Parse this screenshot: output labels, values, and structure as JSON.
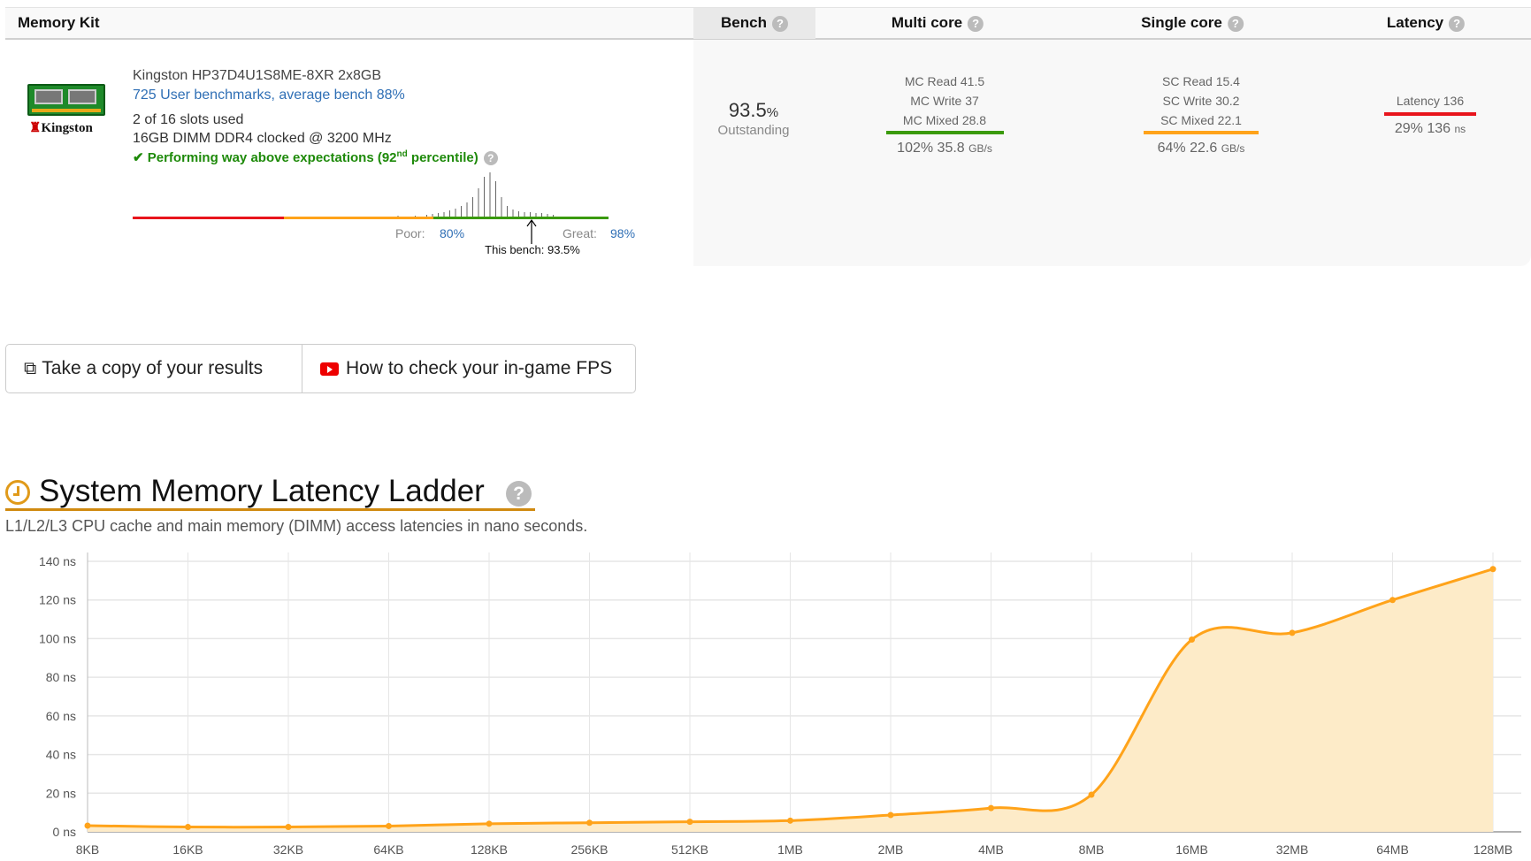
{
  "table": {
    "headers": {
      "kit": "Memory Kit",
      "bench": "Bench",
      "multi": "Multi core",
      "single": "Single core",
      "latency": "Latency"
    },
    "help_glyph": "?",
    "kit": {
      "name": "Kingston HP37D4U1S8ME-8XR 2x8GB",
      "benchmarks_link": "725 User benchmarks, average bench 88%",
      "slots": "2 of 16 slots used",
      "spec": "16GB DIMM DDR4 clocked @ 3200 MHz",
      "performance_prefix": "Performing way above expectations (92",
      "performance_sup": "nd",
      "performance_suffix": " percentile)",
      "logo_text": "Kingston",
      "distribution": {
        "poor_label": "Poor:",
        "poor_value": "80%",
        "great_label": "Great:",
        "great_value": "98%",
        "this_bench": "This bench: 93.5%"
      }
    },
    "bench": {
      "value": "93.5",
      "unit": "%",
      "rating": "Outstanding"
    },
    "multi": {
      "read": "MC Read 41.5",
      "write": "MC Write 37",
      "mixed": "MC Mixed 28.8",
      "summary": "102% 35.8",
      "unit": "GB/s",
      "bar_color": "#3a9a0a"
    },
    "single": {
      "read": "SC Read 15.4",
      "write": "SC Write 30.2",
      "mixed": "SC Mixed 22.1",
      "summary": "64% 22.6",
      "unit": "GB/s",
      "bar_color": "#ffa31a"
    },
    "latency": {
      "label": "Latency 136",
      "summary": "29% 136",
      "unit": "ns",
      "bar_color": "#e8141c"
    }
  },
  "buttons": {
    "copy": "Take a copy of your results",
    "fps": "How to check your in-game FPS"
  },
  "section": {
    "title": "System Memory Latency Ladder",
    "subtitle": "L1/L2/L3 CPU cache and main memory (DIMM) access latencies in nano seconds."
  },
  "chart_data": {
    "type": "area",
    "categories": [
      "8KB",
      "16KB",
      "32KB",
      "64KB",
      "128KB",
      "256KB",
      "512KB",
      "1MB",
      "2MB",
      "4MB",
      "8MB",
      "16MB",
      "32MB",
      "64MB",
      "128MB"
    ],
    "values": [
      3.2,
      2.5,
      2.5,
      3.0,
      4.2,
      4.7,
      5.2,
      5.8,
      8.7,
      12.3,
      19.2,
      99.5,
      103,
      120,
      136
    ],
    "yticks": [
      "0 ns",
      "20 ns",
      "40 ns",
      "60 ns",
      "80 ns",
      "100 ns",
      "120 ns",
      "140 ns"
    ],
    "ylim": [
      0,
      140
    ],
    "grid": true,
    "color": "#ffa31a",
    "fill": "#fdebc8"
  }
}
